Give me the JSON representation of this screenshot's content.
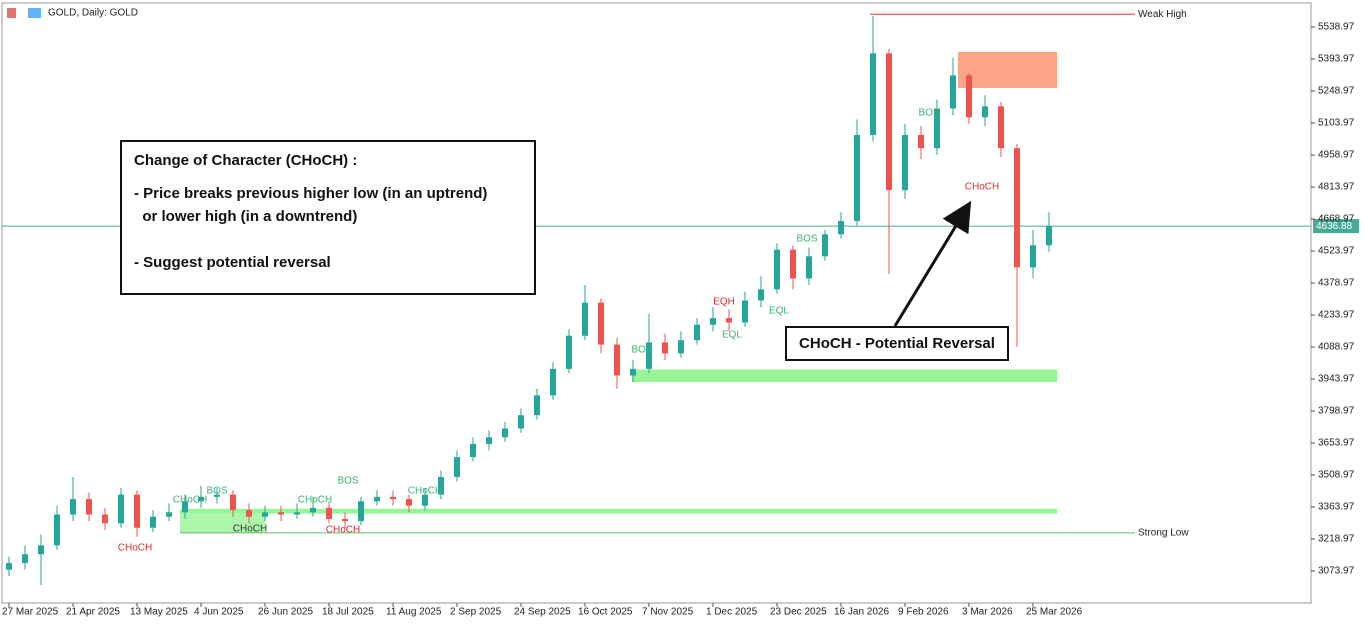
{
  "header": "GOLD, Daily: GOLD",
  "chart_data": {
    "type": "candlestick",
    "open": [
      3080,
      3110,
      3150,
      3190,
      3330,
      3400,
      3330,
      3290,
      3420,
      3270,
      3320,
      3340,
      3390,
      3410,
      3420,
      3350,
      3320,
      3340,
      3330,
      3340,
      3360,
      3310,
      3300,
      3390,
      3410,
      3400,
      3370,
      3420,
      3500,
      3590,
      3650,
      3680,
      3720,
      3780,
      3870,
      3990,
      4140,
      4290,
      4100,
      3960,
      3990,
      4110,
      4060,
      4120,
      4190,
      4220,
      4200,
      4300,
      4350,
      4530,
      4400,
      4500,
      4600,
      4660,
      5050,
      5420,
      4800,
      5050,
      4990,
      5170,
      5320,
      5130,
      5180,
      4990,
      4450,
      4550
    ],
    "high": [
      3140,
      3190,
      3240,
      3370,
      3500,
      3430,
      3360,
      3450,
      3440,
      3350,
      3380,
      3420,
      3460,
      3450,
      3440,
      3380,
      3370,
      3370,
      3380,
      3410,
      3390,
      3340,
      3410,
      3440,
      3440,
      3420,
      3450,
      3530,
      3620,
      3680,
      3710,
      3750,
      3810,
      3900,
      4020,
      4170,
      4370,
      4310,
      4130,
      4030,
      4240,
      4150,
      4160,
      4220,
      4270,
      4260,
      4340,
      4410,
      4560,
      4550,
      4540,
      4620,
      4700,
      5120,
      5590,
      5440,
      5100,
      5090,
      5210,
      5400,
      5330,
      5230,
      5200,
      5010,
      4620,
      4700
    ],
    "low": [
      3050,
      3080,
      3010,
      3170,
      3300,
      3300,
      3260,
      3270,
      3230,
      3250,
      3300,
      3310,
      3360,
      3380,
      3320,
      3290,
      3300,
      3300,
      3310,
      3320,
      3290,
      3270,
      3280,
      3370,
      3370,
      3340,
      3350,
      3400,
      3480,
      3570,
      3620,
      3660,
      3700,
      3760,
      3850,
      3970,
      4120,
      4060,
      3900,
      3930,
      3970,
      4030,
      4040,
      4100,
      4160,
      4160,
      4180,
      4270,
      4330,
      4350,
      4370,
      4480,
      4580,
      4640,
      5020,
      4420,
      4760,
      4940,
      4960,
      5140,
      5100,
      5090,
      4950,
      4090,
      4400,
      4520
    ],
    "close": [
      3110,
      3150,
      3190,
      3330,
      3400,
      3330,
      3290,
      3420,
      3270,
      3320,
      3340,
      3390,
      3410,
      3420,
      3350,
      3320,
      3340,
      3330,
      3340,
      3360,
      3310,
      3300,
      3390,
      3410,
      3400,
      3370,
      3420,
      3500,
      3590,
      3650,
      3680,
      3720,
      3780,
      3870,
      3990,
      4140,
      4290,
      4100,
      3960,
      3990,
      4110,
      4060,
      4120,
      4190,
      4220,
      4200,
      4300,
      4350,
      4530,
      4400,
      4500,
      4600,
      4660,
      5050,
      5420,
      4800,
      5050,
      4990,
      5170,
      5320,
      5130,
      5180,
      4990,
      4450,
      4550,
      4637
    ],
    "up_color": "#26a69a",
    "down_color": "#ef5350",
    "xticks": [
      {
        "value": 0,
        "label": "27 Mar 2025"
      },
      {
        "value": 4,
        "label": "21 Apr 2025"
      },
      {
        "value": 8,
        "label": "13 May 2025"
      },
      {
        "value": 12,
        "label": "4 Jun 2025"
      },
      {
        "value": 16,
        "label": "26 Jun 2025"
      },
      {
        "value": 20,
        "label": "18 Jul 2025"
      },
      {
        "value": 24,
        "label": "11 Aug 2025"
      },
      {
        "value": 28,
        "label": "2 Sep 2025"
      },
      {
        "value": 32,
        "label": "24 Sep 2025"
      },
      {
        "value": 36,
        "label": "16 Oct 2025"
      },
      {
        "value": 40,
        "label": "7 Nov 2025"
      },
      {
        "value": 44,
        "label": "1 Dec 2025"
      },
      {
        "value": 48,
        "label": "23 Dec 2025"
      },
      {
        "value": 52,
        "label": "16 Jan 2026"
      },
      {
        "value": 56,
        "label": "9 Feb 2026"
      },
      {
        "value": 60,
        "label": "3 Mar 2026"
      },
      {
        "value": 64,
        "label": "25 Mar 2026"
      }
    ],
    "ylim": [
      2929,
      5648
    ],
    "yticks": [
      3073.97,
      3218.97,
      3363.97,
      3508.97,
      3653.97,
      3798.97,
      3943.97,
      4088.97,
      4233.97,
      4378.97,
      4523.97,
      4668.97,
      4813.97,
      4958.97,
      5103.97,
      5248.97,
      5393.97,
      5538.97
    ],
    "current_price": 4636.88,
    "current_color": "#48a999",
    "levels": [
      {
        "name": "Weak High",
        "value": 5597,
        "color": "#e53935"
      },
      {
        "name": "Strong Low",
        "value": 3247,
        "color": "#66bb6a"
      }
    ],
    "zones": [
      {
        "low": 5263,
        "high": 5426,
        "color": "#fca586"
      },
      {
        "low": 3930,
        "high": 3987,
        "color": "#98f598"
      },
      {
        "low": 3334,
        "high": 3356,
        "color": "#98f598"
      },
      {
        "low": 3247,
        "high": 3334,
        "color": "#98f598"
      }
    ],
    "structure_labels": [
      {
        "text": "BOS",
        "color": "#3cb371"
      },
      {
        "text": "CHoCH",
        "color": "#d32f2f"
      },
      {
        "text": "CHoCH",
        "color": "#3cb371"
      },
      {
        "text": "BOS",
        "color": "#3cb371"
      },
      {
        "text": "CHoCH",
        "color": "#333333"
      },
      {
        "text": "CHoCH",
        "color": "#3cb371"
      },
      {
        "text": "CHoCH",
        "color": "#d32f2f"
      },
      {
        "text": "CHoCH",
        "color": "#3cb371"
      },
      {
        "text": "BOS",
        "color": "#3cb371"
      },
      {
        "text": "EQH",
        "color": "#d32f2f"
      },
      {
        "text": "EQL",
        "color": "#3cb371"
      },
      {
        "text": "EQL",
        "color": "#3cb371"
      },
      {
        "text": "BOS",
        "color": "#3cb371"
      },
      {
        "text": "BOS",
        "color": "#3cb371"
      },
      {
        "text": "CHoCH",
        "color": "#d32f2f"
      }
    ]
  },
  "info_box": {
    "title": "Change of Character (CHoCH) :",
    "lines": [
      "- Price breaks previous higher low (in an uptrend)",
      "  or lower high (in a downtrend)",
      "- Suggest potential reversal"
    ]
  },
  "callout": "CHoCH - Potential Reversal"
}
